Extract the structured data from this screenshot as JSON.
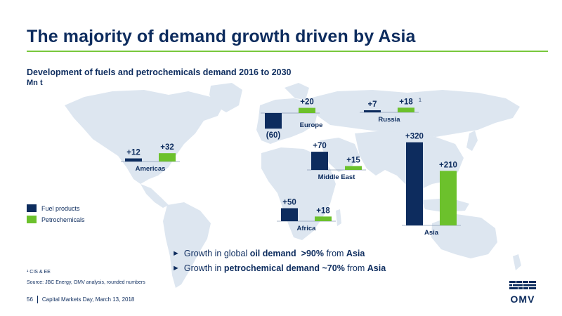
{
  "title": "The majority of demand growth driven by Asia",
  "subtitle": "Development of fuels and petrochemicals demand 2016 to 2030",
  "unit": "Mn t",
  "legend": [
    {
      "label": "Fuel products",
      "color": "#0d2c5e"
    },
    {
      "label": "Petrochemicals",
      "color": "#6cc12c"
    }
  ],
  "chart_data": {
    "type": "bar",
    "series": [
      {
        "name": "Fuel products",
        "color": "#0d2c5e"
      },
      {
        "name": "Petrochemicals",
        "color": "#6cc12c"
      }
    ],
    "regions": [
      {
        "name": "Americas",
        "fuel": 12,
        "fuel_label": "+12",
        "petro": 32,
        "petro_label": "+32"
      },
      {
        "name": "Europe",
        "fuel": -60,
        "fuel_label": "(60)",
        "petro": 20,
        "petro_label": "+20"
      },
      {
        "name": "Russia",
        "fuel": 7,
        "fuel_label": "+7",
        "petro": 18,
        "petro_label": "+18",
        "petro_note": "1"
      },
      {
        "name": "Middle East",
        "fuel": 70,
        "fuel_label": "+70",
        "petro": 15,
        "petro_label": "+15"
      },
      {
        "name": "Africa",
        "fuel": 50,
        "fuel_label": "+50",
        "petro": 18,
        "petro_label": "+18"
      },
      {
        "name": "Asia",
        "fuel": 320,
        "fuel_label": "+320",
        "petro": 210,
        "petro_label": "+210"
      }
    ]
  },
  "bullets": [
    {
      "pre": "Growth in global ",
      "b1": "oil demand",
      "mid": "  ",
      "b2": ">90%",
      "post": " from ",
      "b3": "Asia"
    },
    {
      "pre": "Growth in ",
      "b1": "petrochemical demand",
      "mid": " ",
      "b2": "~70%",
      "post": " from ",
      "b3": "Asia"
    }
  ],
  "footnote": "¹ CIS & EE",
  "source": "Source: JBC Energy, OMV analysis, rounded numbers",
  "footer": {
    "page": "56",
    "event": "Capital Markets Day, March 13, 2018"
  },
  "logo": {
    "text": "OMV"
  }
}
